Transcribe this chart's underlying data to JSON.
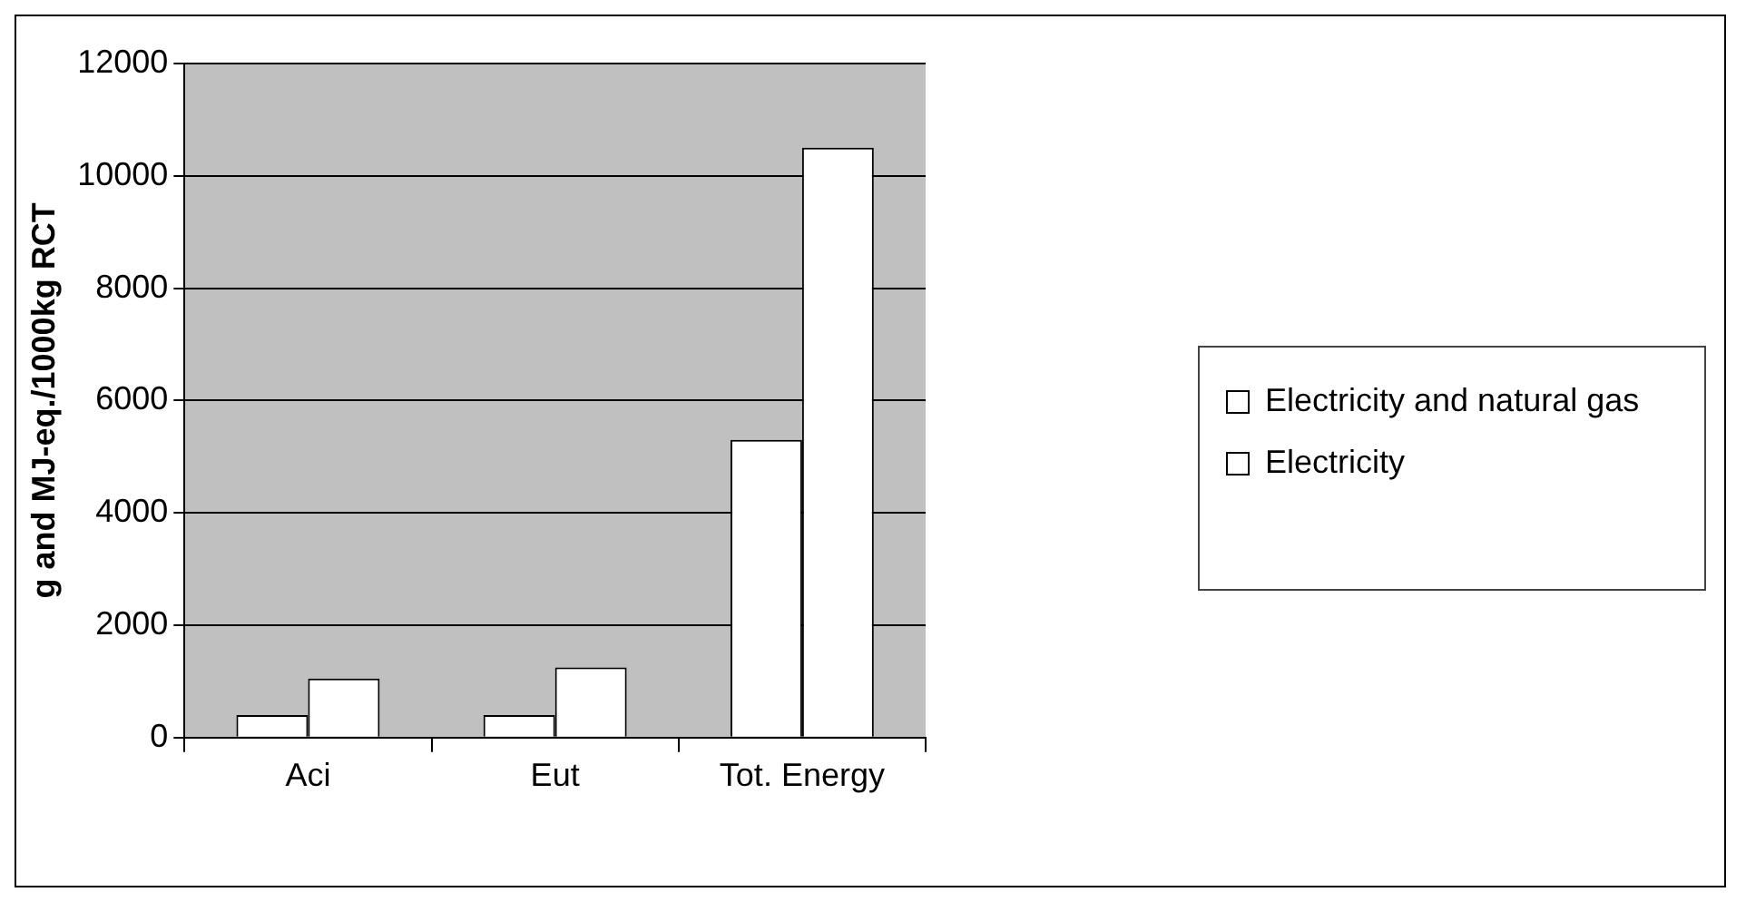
{
  "chart_data": {
    "type": "bar",
    "ylabel": "g and MJ-eq./1000kg RCT",
    "categories": [
      "Aci",
      "Eut",
      "Tot. Energy"
    ],
    "series": [
      {
        "name": "Electricity and natural gas",
        "color": "#ffffff",
        "values": [
          400,
          400,
          5300
        ]
      },
      {
        "name": "Electricity",
        "color": "#ffffff",
        "values": [
          1050,
          1250,
          10500
        ]
      }
    ],
    "ylim": [
      0,
      12000
    ],
    "yticks": [
      0,
      2000,
      4000,
      6000,
      8000,
      10000,
      12000
    ],
    "grid": "y",
    "legend": "right"
  }
}
